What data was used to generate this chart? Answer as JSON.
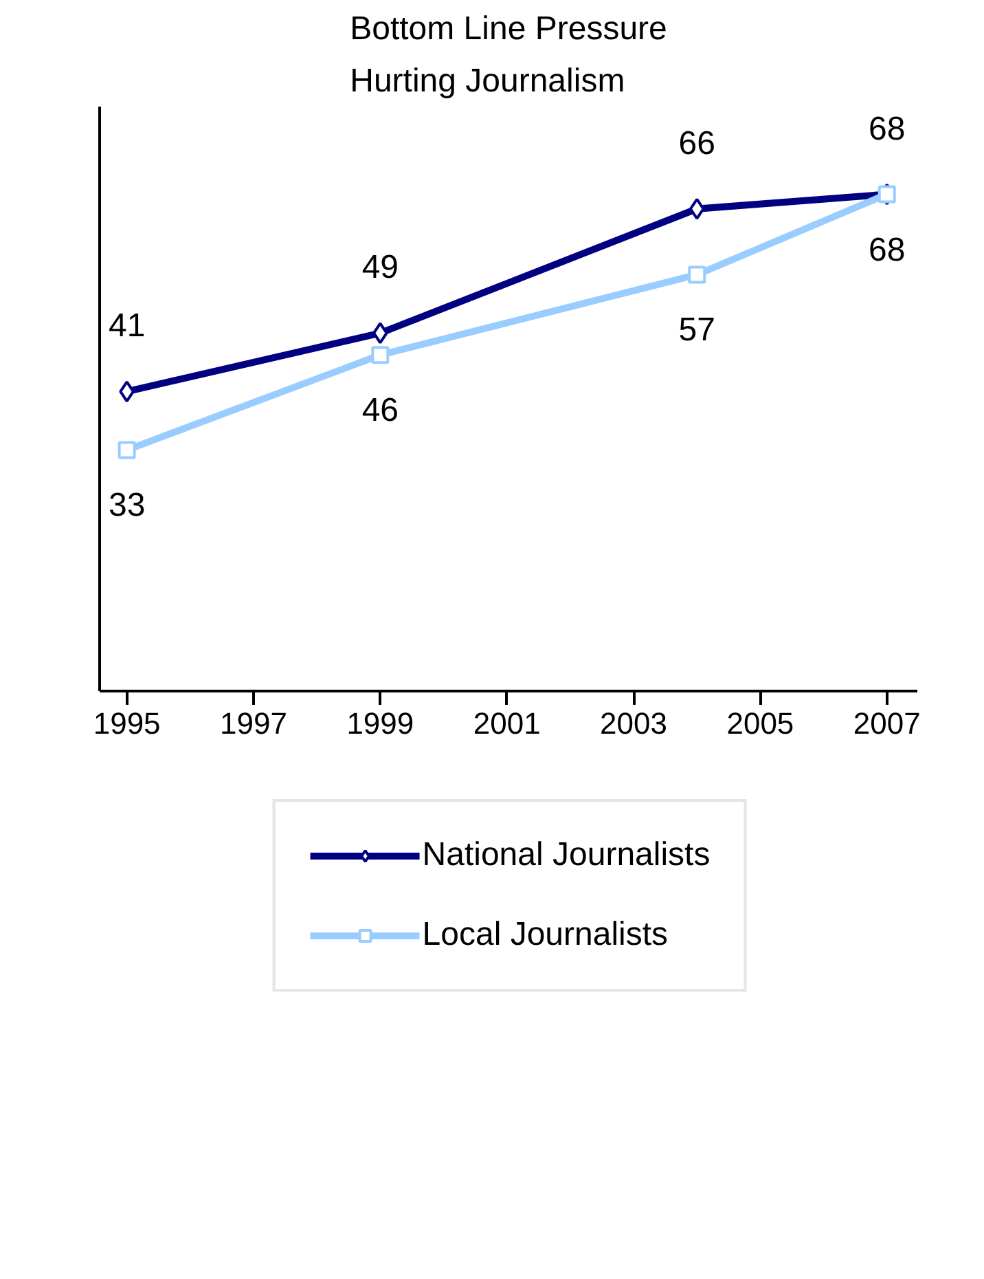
{
  "chart_data": {
    "type": "line",
    "title": "Bottom Line Pressure\nHurting Journalism",
    "x": [
      1995,
      1999,
      2004,
      2007
    ],
    "series": [
      {
        "name": "National Journalists",
        "color": "#000080",
        "marker": "diamond",
        "values": [
          41,
          49,
          66,
          68
        ]
      },
      {
        "name": "Local Journalists",
        "color": "#99ccff",
        "marker": "square",
        "values": [
          33,
          46,
          57,
          68
        ]
      }
    ],
    "xlim": [
      1994.57,
      2007.48
    ],
    "xticks": [
      1995,
      1997,
      1999,
      2001,
      2003,
      2005,
      2007
    ],
    "ylim": [
      0,
      80
    ],
    "tick_labels": "x",
    "data_labels": true,
    "grid": false,
    "legend": "bottom",
    "line_style": "solid"
  }
}
